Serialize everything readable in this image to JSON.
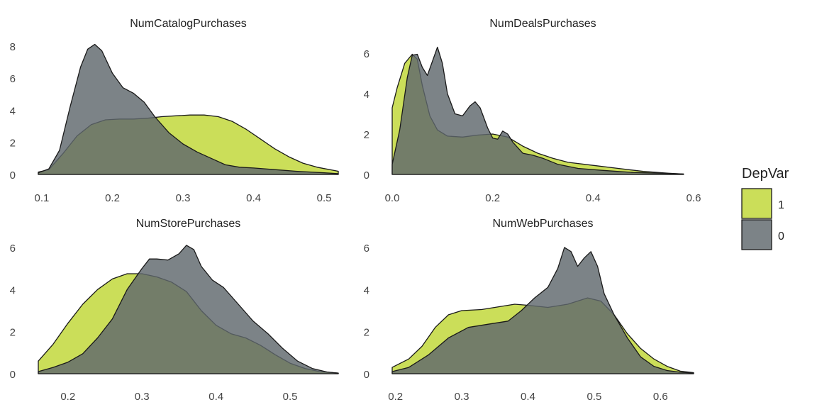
{
  "legend": {
    "title": "DepVar",
    "items": [
      {
        "label": "1",
        "color": "#C8DC50"
      },
      {
        "label": "0",
        "color": "#5F686D"
      }
    ]
  },
  "colors": {
    "depvar_1": "#C8DC50",
    "depvar_0": "#5F686D",
    "outline": "#1A1A1A"
  },
  "chart_data": [
    {
      "type": "area",
      "title": "NumCatalogPurchases",
      "xlim": [
        0.095,
        0.52
      ],
      "ylim": [
        0,
        8.3
      ],
      "xticks": [
        "0.1",
        "0.2",
        "0.3",
        "0.4",
        "0.5"
      ],
      "yticks": [
        "0",
        "2",
        "4",
        "6",
        "8"
      ],
      "series": [
        {
          "name": "1",
          "points": [
            [
              0.095,
              0.15
            ],
            [
              0.11,
              0.3
            ],
            [
              0.13,
              1.3
            ],
            [
              0.15,
              2.4
            ],
            [
              0.17,
              3.1
            ],
            [
              0.19,
              3.4
            ],
            [
              0.21,
              3.45
            ],
            [
              0.23,
              3.45
            ],
            [
              0.25,
              3.5
            ],
            [
              0.27,
              3.6
            ],
            [
              0.29,
              3.65
            ],
            [
              0.31,
              3.7
            ],
            [
              0.33,
              3.7
            ],
            [
              0.35,
              3.6
            ],
            [
              0.37,
              3.3
            ],
            [
              0.39,
              2.8
            ],
            [
              0.41,
              2.2
            ],
            [
              0.43,
              1.6
            ],
            [
              0.45,
              1.1
            ],
            [
              0.47,
              0.7
            ],
            [
              0.49,
              0.45
            ],
            [
              0.52,
              0.2
            ]
          ]
        },
        {
          "name": "0",
          "points": [
            [
              0.095,
              0.1
            ],
            [
              0.11,
              0.35
            ],
            [
              0.125,
              1.5
            ],
            [
              0.14,
              4.2
            ],
            [
              0.155,
              6.7
            ],
            [
              0.165,
              7.8
            ],
            [
              0.175,
              8.1
            ],
            [
              0.185,
              7.7
            ],
            [
              0.2,
              6.3
            ],
            [
              0.215,
              5.4
            ],
            [
              0.23,
              5.05
            ],
            [
              0.245,
              4.5
            ],
            [
              0.26,
              3.6
            ],
            [
              0.28,
              2.6
            ],
            [
              0.3,
              1.9
            ],
            [
              0.32,
              1.4
            ],
            [
              0.34,
              1.0
            ],
            [
              0.36,
              0.6
            ],
            [
              0.38,
              0.45
            ],
            [
              0.4,
              0.4
            ],
            [
              0.43,
              0.3
            ],
            [
              0.46,
              0.2
            ],
            [
              0.5,
              0.1
            ],
            [
              0.52,
              0.05
            ]
          ]
        }
      ]
    },
    {
      "type": "area",
      "title": "NumDealsPurchases",
      "xlim": [
        0.0,
        0.6
      ],
      "ylim": [
        0,
        6.6
      ],
      "xticks": [
        "0.0",
        "0.2",
        "0.4",
        "0.6"
      ],
      "yticks": [
        "0",
        "2",
        "4",
        "6"
      ],
      "series": [
        {
          "name": "1",
          "points": [
            [
              0.0,
              3.3
            ],
            [
              0.01,
              4.3
            ],
            [
              0.025,
              5.5
            ],
            [
              0.04,
              5.95
            ],
            [
              0.05,
              5.7
            ],
            [
              0.06,
              4.4
            ],
            [
              0.075,
              2.9
            ],
            [
              0.09,
              2.2
            ],
            [
              0.11,
              1.9
            ],
            [
              0.14,
              1.85
            ],
            [
              0.17,
              1.95
            ],
            [
              0.2,
              2.0
            ],
            [
              0.23,
              1.85
            ],
            [
              0.26,
              1.4
            ],
            [
              0.29,
              1.05
            ],
            [
              0.32,
              0.8
            ],
            [
              0.35,
              0.6
            ],
            [
              0.4,
              0.45
            ],
            [
              0.45,
              0.3
            ],
            [
              0.5,
              0.15
            ],
            [
              0.55,
              0.06
            ],
            [
              0.58,
              0.02
            ]
          ]
        },
        {
          "name": "0",
          "points": [
            [
              0.0,
              0.5
            ],
            [
              0.015,
              2.2
            ],
            [
              0.03,
              4.8
            ],
            [
              0.04,
              5.9
            ],
            [
              0.05,
              5.95
            ],
            [
              0.06,
              5.3
            ],
            [
              0.07,
              4.9
            ],
            [
              0.08,
              5.6
            ],
            [
              0.09,
              6.3
            ],
            [
              0.1,
              5.5
            ],
            [
              0.11,
              4.0
            ],
            [
              0.125,
              3.0
            ],
            [
              0.14,
              2.9
            ],
            [
              0.155,
              3.4
            ],
            [
              0.165,
              3.6
            ],
            [
              0.175,
              3.3
            ],
            [
              0.19,
              2.3
            ],
            [
              0.2,
              1.8
            ],
            [
              0.21,
              1.75
            ],
            [
              0.22,
              2.15
            ],
            [
              0.23,
              2.0
            ],
            [
              0.24,
              1.6
            ],
            [
              0.26,
              1.05
            ],
            [
              0.28,
              0.95
            ],
            [
              0.3,
              0.8
            ],
            [
              0.33,
              0.5
            ],
            [
              0.37,
              0.3
            ],
            [
              0.42,
              0.2
            ],
            [
              0.48,
              0.1
            ],
            [
              0.55,
              0.05
            ],
            [
              0.58,
              0.02
            ]
          ]
        }
      ]
    },
    {
      "type": "area",
      "title": "NumStorePurchases",
      "xlim": [
        0.16,
        0.565
      ],
      "ylim": [
        0,
        6.3
      ],
      "xticks": [
        "0.2",
        "0.3",
        "0.4",
        "0.5"
      ],
      "yticks": [
        "0",
        "2",
        "4",
        "6"
      ],
      "series": [
        {
          "name": "1",
          "points": [
            [
              0.16,
              0.6
            ],
            [
              0.18,
              1.4
            ],
            [
              0.2,
              2.4
            ],
            [
              0.22,
              3.3
            ],
            [
              0.24,
              4.0
            ],
            [
              0.26,
              4.5
            ],
            [
              0.28,
              4.75
            ],
            [
              0.3,
              4.75
            ],
            [
              0.32,
              4.6
            ],
            [
              0.34,
              4.35
            ],
            [
              0.36,
              3.9
            ],
            [
              0.38,
              3.0
            ],
            [
              0.4,
              2.3
            ],
            [
              0.42,
              1.9
            ],
            [
              0.44,
              1.7
            ],
            [
              0.46,
              1.35
            ],
            [
              0.48,
              0.9
            ],
            [
              0.5,
              0.5
            ],
            [
              0.52,
              0.25
            ],
            [
              0.54,
              0.1
            ],
            [
              0.565,
              0.03
            ]
          ]
        },
        {
          "name": "0",
          "points": [
            [
              0.16,
              0.1
            ],
            [
              0.18,
              0.3
            ],
            [
              0.2,
              0.55
            ],
            [
              0.22,
              0.95
            ],
            [
              0.24,
              1.7
            ],
            [
              0.26,
              2.6
            ],
            [
              0.28,
              4.0
            ],
            [
              0.3,
              5.0
            ],
            [
              0.31,
              5.45
            ],
            [
              0.32,
              5.45
            ],
            [
              0.335,
              5.4
            ],
            [
              0.35,
              5.7
            ],
            [
              0.36,
              6.1
            ],
            [
              0.37,
              5.9
            ],
            [
              0.38,
              5.1
            ],
            [
              0.395,
              4.45
            ],
            [
              0.41,
              4.1
            ],
            [
              0.43,
              3.3
            ],
            [
              0.45,
              2.5
            ],
            [
              0.47,
              1.9
            ],
            [
              0.49,
              1.2
            ],
            [
              0.51,
              0.6
            ],
            [
              0.53,
              0.25
            ],
            [
              0.55,
              0.08
            ],
            [
              0.565,
              0.03
            ]
          ]
        }
      ]
    },
    {
      "type": "area",
      "title": "NumWebPurchases",
      "xlim": [
        0.195,
        0.65
      ],
      "ylim": [
        0,
        6.3
      ],
      "xticks": [
        "0.2",
        "0.3",
        "0.4",
        "0.5",
        "0.6"
      ],
      "yticks": [
        "0",
        "2",
        "4",
        "6"
      ],
      "series": [
        {
          "name": "1",
          "points": [
            [
              0.195,
              0.3
            ],
            [
              0.22,
              0.7
            ],
            [
              0.24,
              1.3
            ],
            [
              0.26,
              2.2
            ],
            [
              0.28,
              2.8
            ],
            [
              0.3,
              3.0
            ],
            [
              0.33,
              3.05
            ],
            [
              0.36,
              3.2
            ],
            [
              0.38,
              3.3
            ],
            [
              0.4,
              3.25
            ],
            [
              0.43,
              3.15
            ],
            [
              0.46,
              3.3
            ],
            [
              0.49,
              3.6
            ],
            [
              0.51,
              3.45
            ],
            [
              0.53,
              2.8
            ],
            [
              0.55,
              1.9
            ],
            [
              0.57,
              1.2
            ],
            [
              0.59,
              0.7
            ],
            [
              0.61,
              0.35
            ],
            [
              0.63,
              0.12
            ],
            [
              0.65,
              0.05
            ]
          ]
        },
        {
          "name": "0",
          "points": [
            [
              0.195,
              0.1
            ],
            [
              0.22,
              0.3
            ],
            [
              0.25,
              0.9
            ],
            [
              0.28,
              1.7
            ],
            [
              0.31,
              2.2
            ],
            [
              0.34,
              2.35
            ],
            [
              0.37,
              2.5
            ],
            [
              0.39,
              3.0
            ],
            [
              0.41,
              3.6
            ],
            [
              0.43,
              4.1
            ],
            [
              0.445,
              5.0
            ],
            [
              0.455,
              6.0
            ],
            [
              0.465,
              5.8
            ],
            [
              0.475,
              5.1
            ],
            [
              0.485,
              5.5
            ],
            [
              0.495,
              5.8
            ],
            [
              0.505,
              5.1
            ],
            [
              0.515,
              3.8
            ],
            [
              0.53,
              2.8
            ],
            [
              0.55,
              1.7
            ],
            [
              0.57,
              0.8
            ],
            [
              0.59,
              0.35
            ],
            [
              0.61,
              0.15
            ],
            [
              0.63,
              0.07
            ],
            [
              0.65,
              0.03
            ]
          ]
        }
      ]
    }
  ]
}
